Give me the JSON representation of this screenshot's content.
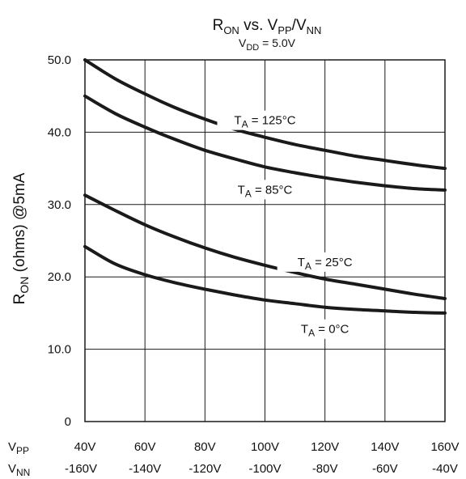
{
  "chart_data": {
    "type": "line",
    "title": {
      "main": "R",
      "main_sub": "ON",
      "mid": " vs. V",
      "mid_sub": "PP",
      "sep": "/V",
      "end_sub": "NN"
    },
    "subtitle": {
      "main": "V",
      "sub": "DD",
      "rest": " = 5.0V"
    },
    "ylabel": {
      "main": "R",
      "sub": "ON",
      "rest": " (ohms) @5mA"
    },
    "ylim": [
      0,
      50
    ],
    "yticks": [
      {
        "value": 0,
        "label": "0"
      },
      {
        "value": 10,
        "label": "10.0"
      },
      {
        "value": 20,
        "label": "20.0"
      },
      {
        "value": 30,
        "label": "30.0"
      },
      {
        "value": 40,
        "label": "40.0"
      },
      {
        "value": 50,
        "label": "50.0"
      }
    ],
    "xlim": [
      40,
      160
    ],
    "x_axes": [
      {
        "label_main": "V",
        "label_sub": "PP",
        "ticks": [
          "40V",
          "60V",
          "80V",
          "100V",
          "120V",
          "140V",
          "160V"
        ]
      },
      {
        "label_main": "V",
        "label_sub": "NN",
        "ticks": [
          "-160V",
          "-140V",
          "-120V",
          "-100V",
          "-80V",
          "-60V",
          "-40V"
        ]
      }
    ],
    "grid": true,
    "x": [
      40,
      50,
      60,
      70,
      80,
      90,
      100,
      110,
      120,
      130,
      140,
      150,
      160
    ],
    "series": [
      {
        "name": "T_A = 125°C",
        "label_main": "T",
        "label_sub": "A",
        "label_rest": " = 125°C",
        "label_at": 100,
        "values": [
          50.0,
          47.4,
          45.3,
          43.4,
          41.8,
          40.4,
          39.3,
          38.3,
          37.5,
          36.7,
          36.1,
          35.5,
          35.0
        ]
      },
      {
        "name": "T_A = 85°C",
        "label_main": "T",
        "label_sub": "A",
        "label_rest": " = 85°C",
        "label_at": 100,
        "values": [
          45.0,
          42.6,
          40.7,
          39.0,
          37.5,
          36.3,
          35.2,
          34.4,
          33.7,
          33.1,
          32.6,
          32.2,
          32.0
        ]
      },
      {
        "name": "T_A = 25°C",
        "label_main": "T",
        "label_sub": "A",
        "label_rest": " = 25°C",
        "label_at": 120,
        "values": [
          31.3,
          29.2,
          27.2,
          25.5,
          24.0,
          22.7,
          21.6,
          20.6,
          19.7,
          19.0,
          18.3,
          17.6,
          17.0
        ]
      },
      {
        "name": "T_A = 0°C",
        "label_main": "T",
        "label_sub": "A",
        "label_rest": " = 0°C",
        "label_at": 120,
        "values": [
          24.2,
          21.8,
          20.3,
          19.2,
          18.3,
          17.5,
          16.8,
          16.3,
          15.8,
          15.5,
          15.3,
          15.1,
          15.0
        ]
      }
    ],
    "colors": {
      "line": "#1a1a1a",
      "grid": "#1a1a1a",
      "background": "#ffffff"
    }
  }
}
